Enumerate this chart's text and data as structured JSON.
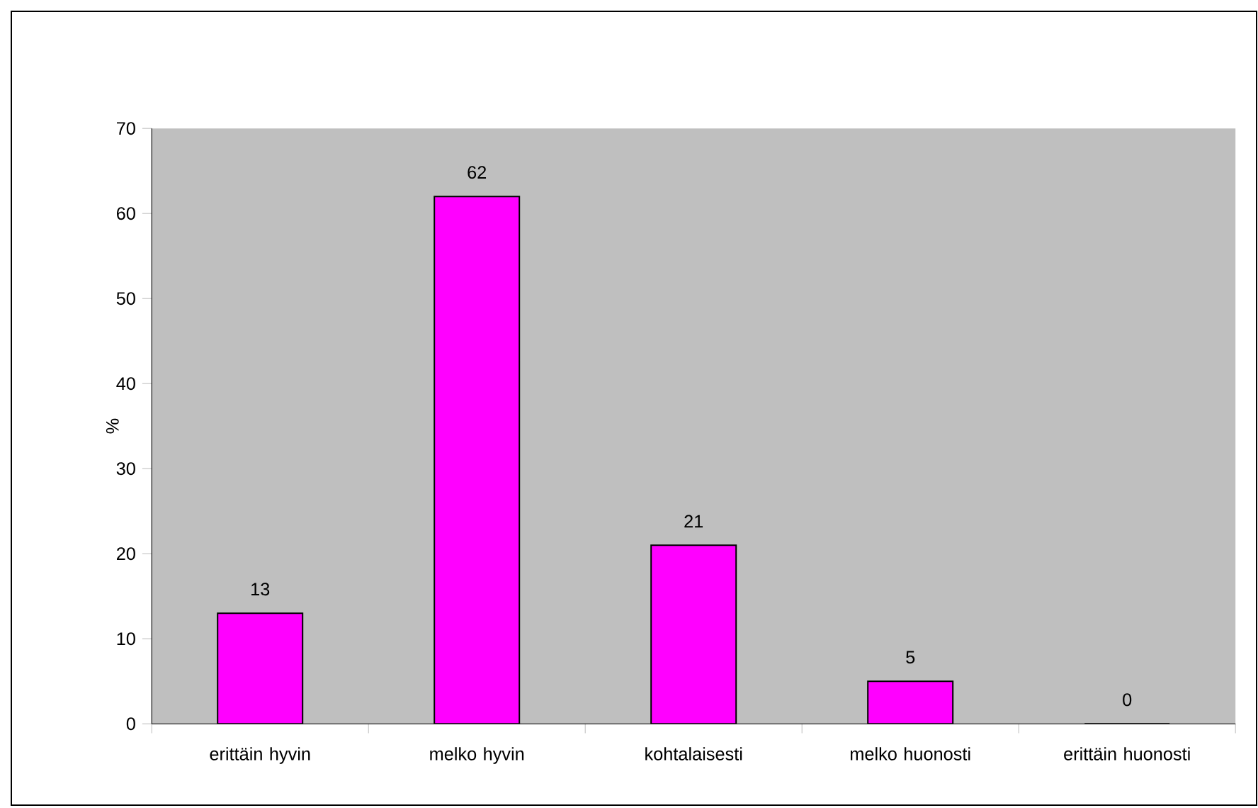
{
  "chart_data": {
    "type": "bar",
    "ylabel": "%",
    "categories": [
      "erittäin hyvin",
      "melko hyvin",
      "kohtalaisesti",
      "melko huonosti",
      "erittäin huonosti"
    ],
    "values": [
      13,
      62,
      21,
      5,
      0
    ],
    "color": "#ff00ff",
    "ylim": [
      0,
      70
    ],
    "yticks": [
      0,
      10,
      20,
      30,
      40,
      50,
      60,
      70
    ],
    "data_labels": true
  }
}
